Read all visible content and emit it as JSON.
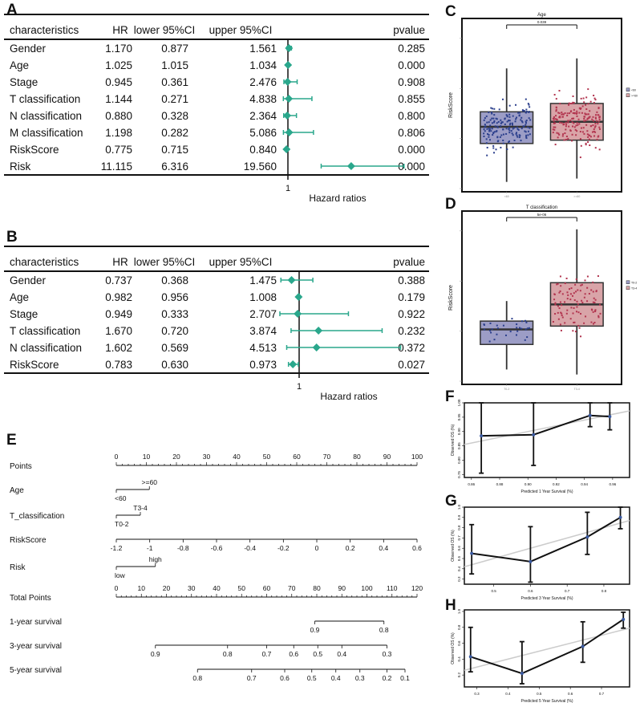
{
  "colors": {
    "forest": "#2aa78c",
    "box_low": "#9c9dc6",
    "box_high": "#d9a4a8",
    "pt_low": "#2b3f8c",
    "pt_high": "#b2354f",
    "ideal": "#cccccc",
    "cal_point": "#3b5aa0"
  },
  "chart_data": [
    {
      "panel": "A",
      "type": "table",
      "columns": [
        "characteristics",
        "HR",
        "lower 95%CI",
        "upper 95%CI",
        "pvalue"
      ],
      "rows": [
        [
          "Gender",
          "1.170",
          "0.877",
          "1.561",
          "0.285"
        ],
        [
          "Age",
          "1.025",
          "1.015",
          "1.034",
          "0.000"
        ],
        [
          "Stage",
          "0.945",
          "0.361",
          "2.476",
          "0.908"
        ],
        [
          "T classification",
          "1.144",
          "0.271",
          "4.838",
          "0.855"
        ],
        [
          "N classification",
          "0.880",
          "0.328",
          "2.364",
          "0.800"
        ],
        [
          "M classification",
          "1.198",
          "0.282",
          "5.086",
          "0.806"
        ],
        [
          "RiskScore",
          "0.775",
          "0.715",
          "0.840",
          "0.000"
        ],
        [
          "Risk",
          "11.115",
          "6.316",
          "19.560",
          "0.000"
        ]
      ],
      "xlabel": "Hazard ratios",
      "ref_tick": "1"
    },
    {
      "panel": "B",
      "type": "table",
      "columns": [
        "characteristics",
        "HR",
        "lower 95%CI",
        "upper 95%CI",
        "pvalue"
      ],
      "rows": [
        [
          "Gender",
          "0.737",
          "0.368",
          "1.475",
          "0.388"
        ],
        [
          "Age",
          "0.982",
          "0.956",
          "1.008",
          "0.179"
        ],
        [
          "Stage",
          "0.949",
          "0.333",
          "2.707",
          "0.922"
        ],
        [
          "T classification",
          "1.670",
          "0.720",
          "3.874",
          "0.232"
        ],
        [
          "N classification",
          "1.602",
          "0.569",
          "4.513",
          "0.372"
        ],
        [
          "RiskScore",
          "0.783",
          "0.630",
          "0.973",
          "0.027"
        ]
      ],
      "xlabel": "Hazard ratios",
      "ref_tick": "1"
    },
    {
      "panel": "C",
      "type": "box",
      "title": "Age",
      "ylabel": "RiskScore",
      "pvalue": "0.039",
      "groups": [
        {
          "name": "<60",
          "n": 170,
          "min": 0.04,
          "q1": 0.27,
          "median": 0.37,
          "q3": 0.46,
          "max": 0.72
        },
        {
          "name": ">=60",
          "n": 190,
          "min": 0.06,
          "q1": 0.29,
          "median": 0.4,
          "q3": 0.51,
          "max": 0.78
        }
      ]
    },
    {
      "panel": "D",
      "type": "box",
      "title": "T classification",
      "ylabel": "RiskScore",
      "pvalue": "5e-06",
      "groups": [
        {
          "name": "T0-2",
          "n": 30,
          "min": 0.07,
          "q1": 0.22,
          "median": 0.31,
          "q3": 0.36,
          "max": 0.48
        },
        {
          "name": "T3-4",
          "n": 100,
          "min": 0.04,
          "q1": 0.33,
          "median": 0.46,
          "q3": 0.59,
          "max": 0.91
        }
      ]
    },
    {
      "panel": "E",
      "type": "nomogram",
      "rows": [
        {
          "label": "Points",
          "min": 0,
          "max": 100,
          "ticks": [
            "0",
            "10",
            "20",
            "30",
            "40",
            "50",
            "60",
            "70",
            "80",
            "90",
            "100"
          ]
        },
        {
          "label": "Age",
          "levels": [
            {
              "name": "<60",
              "points": 0
            },
            {
              "name": ">=60",
              "points": 11
            }
          ]
        },
        {
          "label": "T_classification",
          "levels": [
            {
              "name": "T0-2",
              "points": 0
            },
            {
              "name": "T3-4",
              "points": 8
            }
          ]
        },
        {
          "label": "RiskScore",
          "ticks": [
            "-1.2",
            "-1",
            "-0.8",
            "-0.6",
            "-0.4",
            "-0.2",
            "0",
            "0.2",
            "0.4",
            "0.6"
          ]
        },
        {
          "label": "Risk",
          "levels": [
            {
              "name": "low",
              "points": 0
            },
            {
              "name": "high",
              "points": 13
            }
          ]
        },
        {
          "label": "Total Points",
          "min": 0,
          "max": 120,
          "ticks": [
            "0",
            "10",
            "20",
            "30",
            "40",
            "50",
            "60",
            "70",
            "80",
            "90",
            "100",
            "110",
            "120"
          ]
        },
        {
          "label": "1-year survival",
          "ticks": [
            "0.9",
            "0.8"
          ],
          "points": [
            66,
            89
          ]
        },
        {
          "label": "3-year survival",
          "ticks": [
            "0.9",
            "0.8",
            "0.7",
            "0.6",
            "0.5",
            "0.4",
            "0.3"
          ],
          "points": [
            13,
            37,
            50,
            59,
            67,
            75,
            90
          ]
        },
        {
          "label": "5-year survival",
          "ticks": [
            "0.8",
            "0.7",
            "0.6",
            "0.5",
            "0.4",
            "0.3",
            "0.2",
            "0.1"
          ],
          "points": [
            27,
            45,
            56,
            65,
            73,
            81,
            90,
            96
          ]
        }
      ]
    },
    {
      "panel": "F",
      "type": "line",
      "xlabel": "Predicted 1 Year Survival (%)",
      "ylabel": "Observed OS (%)",
      "xlim": [
        0.855,
        0.972
      ],
      "ylim": [
        0.74,
        1.0
      ],
      "xticks": [
        "0.86",
        "0.88",
        "0.90",
        "0.92",
        "0.94",
        "0.96"
      ],
      "yticks": [
        "0.75",
        "0.80",
        "0.85",
        "0.90",
        "0.95",
        "1.00"
      ],
      "x": [
        0.867,
        0.904,
        0.944,
        0.958
      ],
      "y": [
        0.885,
        0.889,
        0.956,
        0.952
      ],
      "lower": [
        0.755,
        0.782,
        0.917,
        0.906
      ],
      "upper": [
        1.0,
        1.0,
        1.0,
        1.0
      ]
    },
    {
      "panel": "G",
      "type": "line",
      "xlabel": "Predicted 3 Year Survival (%)",
      "ylabel": "Observed OS (%)",
      "xlim": [
        0.42,
        0.87
      ],
      "ylim": [
        0.25,
        1.0
      ],
      "xticks": [
        "0.5",
        "0.6",
        "0.7",
        "0.8"
      ],
      "yticks": [
        "0.3",
        "0.4",
        "0.5",
        "0.6",
        "0.7",
        "0.8",
        "0.9",
        "1.0"
      ],
      "x": [
        0.44,
        0.6,
        0.755,
        0.845
      ],
      "y": [
        0.55,
        0.47,
        0.71,
        0.9
      ],
      "lower": [
        0.35,
        0.27,
        0.54,
        0.79
      ],
      "upper": [
        0.83,
        0.81,
        0.95,
        1.0
      ]
    },
    {
      "panel": "H",
      "type": "line",
      "xlabel": "Predicted 5 Year Survival (%)",
      "ylabel": "Observed OS (%)",
      "xlim": [
        0.26,
        0.79
      ],
      "ylim": [
        0.05,
        1.02
      ],
      "xticks": [
        "0.3",
        "0.4",
        "0.5",
        "0.6",
        "0.7"
      ],
      "yticks": [
        "0.2",
        "0.4",
        "0.6",
        "0.8",
        "1.0"
      ],
      "x": [
        0.28,
        0.445,
        0.64,
        0.77
      ],
      "y": [
        0.43,
        0.22,
        0.56,
        0.9
      ],
      "lower": [
        0.24,
        0.09,
        0.36,
        0.79
      ],
      "upper": [
        0.8,
        0.62,
        0.87,
        0.99
      ]
    }
  ]
}
